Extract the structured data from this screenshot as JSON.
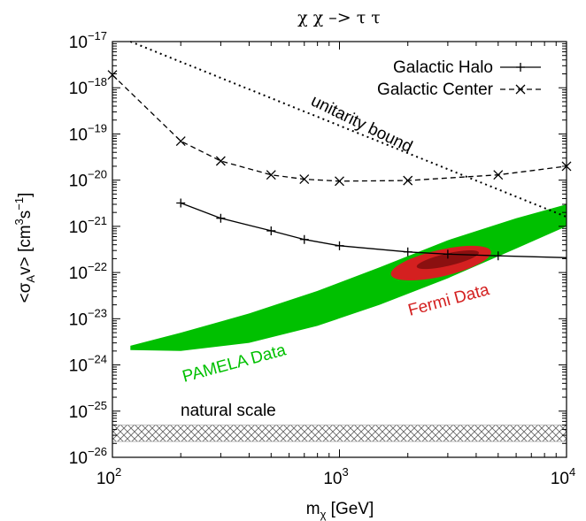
{
  "chart_data": {
    "type": "line",
    "title": "χ χ –> τ τ",
    "xlabel": "m",
    "xlabel_sub": "χ",
    "xlabel_unit": " [GeV]",
    "ylabel": "<σ",
    "ylabel_sub": "A",
    "ylabel_mid": "v> [cm",
    "ylabel_sup1": "3",
    "ylabel_s": "s",
    "ylabel_sup2": "−1",
    "ylabel_end": "]",
    "x_scale": "log",
    "y_scale": "log",
    "xlim": [
      100,
      10000
    ],
    "ylim": [
      1e-26,
      1e-17
    ],
    "x_ticks": [
      {
        "value": 100,
        "base": "10",
        "exp": "2"
      },
      {
        "value": 1000,
        "base": "10",
        "exp": "3"
      },
      {
        "value": 10000,
        "base": "10",
        "exp": "4"
      }
    ],
    "y_ticks": [
      {
        "value": 1e-26,
        "base": "10",
        "exp": "−26"
      },
      {
        "value": 1e-25,
        "base": "10",
        "exp": "−25"
      },
      {
        "value": 1e-24,
        "base": "10",
        "exp": "−24"
      },
      {
        "value": 1e-23,
        "base": "10",
        "exp": "−23"
      },
      {
        "value": 1e-22,
        "base": "10",
        "exp": "−22"
      },
      {
        "value": 1e-21,
        "base": "10",
        "exp": "−21"
      },
      {
        "value": 1e-20,
        "base": "10",
        "exp": "−20"
      },
      {
        "value": 1e-19,
        "base": "10",
        "exp": "−19"
      },
      {
        "value": 1e-18,
        "base": "10",
        "exp": "−18"
      },
      {
        "value": 1e-17,
        "base": "10",
        "exp": "−17"
      }
    ],
    "legend_position": "top-right",
    "series": [
      {
        "name": "Galactic Halo",
        "style": "solid",
        "marker": "+",
        "color": "#000000",
        "x": [
          200,
          300,
          500,
          700,
          1000,
          2000,
          3000,
          5000,
          10000
        ],
        "y": [
          3.2e-21,
          1.5e-21,
          8e-22,
          5.2e-22,
          3.8e-22,
          2.8e-22,
          2.5e-22,
          2.3e-22,
          2.1e-22
        ]
      },
      {
        "name": "Galactic Center",
        "style": "dashed",
        "marker": "x",
        "color": "#000000",
        "x": [
          100,
          200,
          300,
          500,
          700,
          1000,
          2000,
          5000,
          10000
        ],
        "y": [
          1.9e-18,
          7e-20,
          2.6e-20,
          1.3e-20,
          1.05e-20,
          9.5e-21,
          9.8e-21,
          1.3e-20,
          2e-20
        ]
      }
    ],
    "annotations": {
      "unitarity": {
        "text": "unitarity bound",
        "x": [
          120,
          10000
        ],
        "y": [
          1e-17,
          1.6e-21
        ]
      },
      "pamela": {
        "text": "PAMELA Data",
        "color": "#00c000"
      },
      "fermi": {
        "text": "Fermi Data",
        "color": "#d42020",
        "dark_color": "#8b1010"
      },
      "natural": {
        "text": "natural scale",
        "y_range": [
          2.2e-26,
          5e-26
        ]
      }
    },
    "grid": false
  }
}
